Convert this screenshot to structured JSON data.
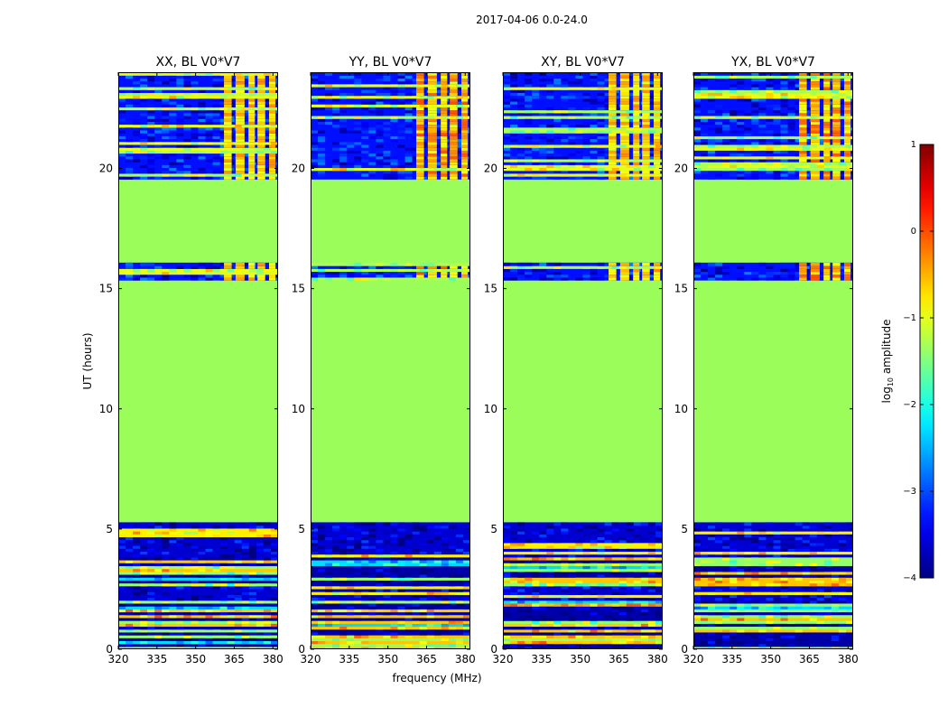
{
  "figure": {
    "suptitle": "2017-04-06 0.0-24.0",
    "xlabel": "frequency (MHz)",
    "ylabel": "UT (hours)"
  },
  "colorbar": {
    "label": "log",
    "label_sub": "10",
    "label_rest": " amplitude",
    "ticks": [
      "1",
      "0",
      "−1",
      "−2",
      "−3",
      "−4"
    ],
    "tick_values": [
      1,
      0,
      -1,
      -2,
      -3,
      -4
    ],
    "range": [
      -4,
      1
    ],
    "colormap": "jet"
  },
  "chart_data": [
    {
      "type": "heatmap",
      "title": "XX, BL V0*V7",
      "xlabel": "frequency (MHz)",
      "ylabel": "UT (hours)",
      "xlim": [
        320,
        382
      ],
      "ylim": [
        0,
        24
      ],
      "xticks": [
        320,
        335,
        350,
        365,
        380
      ],
      "yticks": [
        0,
        5,
        10,
        15,
        20
      ],
      "value": "log10 amplitude"
    },
    {
      "type": "heatmap",
      "title": "YY, BL V0*V7",
      "xlim": [
        320,
        382
      ],
      "ylim": [
        0,
        24
      ],
      "xticks": [
        320,
        335,
        350,
        365,
        380
      ],
      "yticks": [
        0,
        5,
        10,
        15,
        20
      ],
      "value": "log10 amplitude"
    },
    {
      "type": "heatmap",
      "title": "XY, BL V0*V7",
      "xlim": [
        320,
        382
      ],
      "ylim": [
        0,
        24
      ],
      "xticks": [
        320,
        335,
        350,
        365,
        380
      ],
      "yticks": [
        0,
        5,
        10,
        15,
        20
      ],
      "value": "log10 amplitude"
    },
    {
      "type": "heatmap",
      "title": "YX, BL V0*V7",
      "xlim": [
        320,
        382
      ],
      "ylim": [
        0,
        24
      ],
      "xticks": [
        320,
        335,
        350,
        365,
        380
      ],
      "yticks": [
        0,
        5,
        10,
        15,
        20
      ],
      "value": "log10 amplitude"
    }
  ],
  "heatmap_structure": {
    "flagged_value": -1.3,
    "flagged_ut_ranges": [
      [
        5.2,
        15.3
      ],
      [
        16.0,
        19.5
      ]
    ],
    "noise_ut_ranges": [
      [
        0.0,
        5.2
      ],
      [
        15.3,
        16.0
      ],
      [
        19.5,
        24.0
      ]
    ],
    "bright_freq_bands_mhz": [
      [
        361,
        364
      ],
      [
        365.5,
        369
      ],
      [
        370.5,
        373
      ],
      [
        374,
        377
      ],
      [
        378.5,
        381
      ]
    ],
    "bright_value_range": [
      -1.0,
      0.0
    ]
  },
  "colors": {
    "flagged": "#9afd59",
    "background": "#ffffff"
  }
}
